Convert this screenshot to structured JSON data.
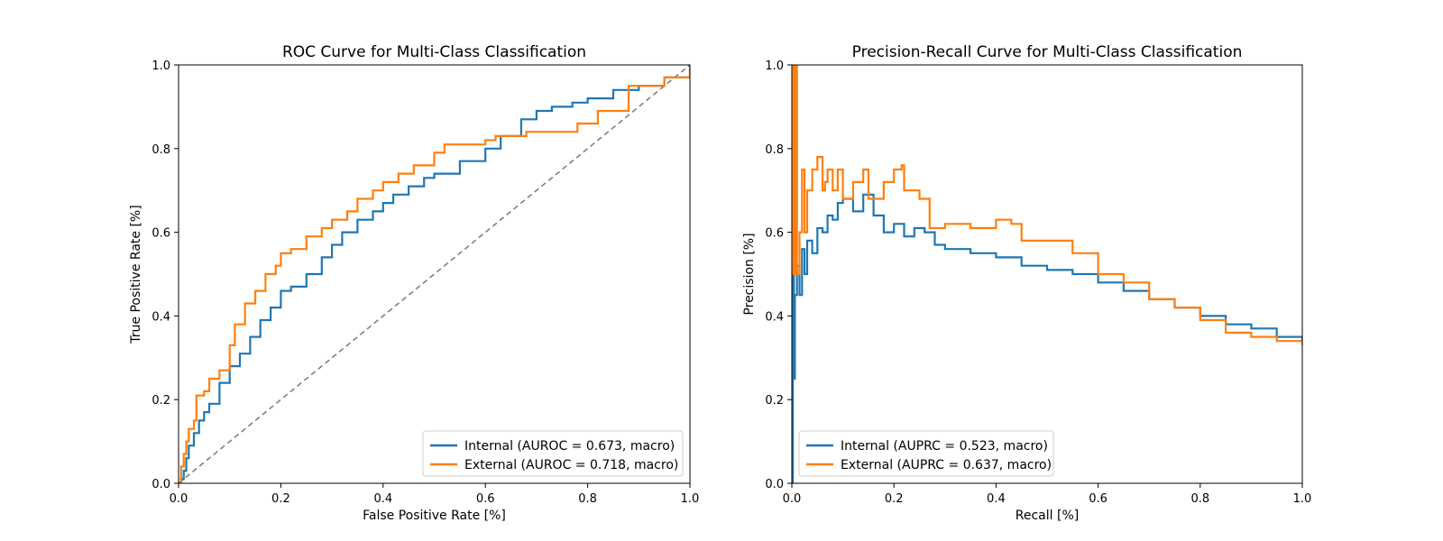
{
  "chart_data": [
    {
      "type": "line",
      "title": "ROC Curve for Multi-Class Classification",
      "xlabel": "False Positive Rate [%]",
      "ylabel": "True Positive Rate [%]",
      "xlim": [
        0,
        1
      ],
      "ylim": [
        0,
        1
      ],
      "xticks": [
        "0.0",
        "0.2",
        "0.4",
        "0.6",
        "0.8",
        "1.0"
      ],
      "yticks": [
        "0.0",
        "0.2",
        "0.4",
        "0.6",
        "0.8",
        "1.0"
      ],
      "grid": false,
      "legend_position": "lower right",
      "reference_line": {
        "x": [
          0,
          1
        ],
        "y": [
          0,
          1
        ],
        "style": "dashed",
        "color": "#808080"
      },
      "series": [
        {
          "name": "Internal (AUROC = 0.673, macro)",
          "color": "#1f77b4",
          "x": [
            0,
            0.005,
            0.01,
            0.015,
            0.02,
            0.03,
            0.04,
            0.05,
            0.06,
            0.08,
            0.1,
            0.12,
            0.14,
            0.16,
            0.18,
            0.2,
            0.22,
            0.25,
            0.28,
            0.3,
            0.32,
            0.35,
            0.38,
            0.4,
            0.42,
            0.45,
            0.48,
            0.5,
            0.55,
            0.6,
            0.63,
            0.67,
            0.7,
            0.73,
            0.77,
            0.8,
            0.85,
            0.9,
            0.95,
            1.0
          ],
          "y": [
            0,
            0.01,
            0.03,
            0.06,
            0.09,
            0.12,
            0.15,
            0.17,
            0.19,
            0.24,
            0.28,
            0.31,
            0.35,
            0.39,
            0.42,
            0.46,
            0.47,
            0.5,
            0.54,
            0.57,
            0.6,
            0.63,
            0.65,
            0.67,
            0.69,
            0.71,
            0.73,
            0.74,
            0.77,
            0.8,
            0.83,
            0.87,
            0.89,
            0.9,
            0.91,
            0.92,
            0.94,
            0.95,
            0.97,
            1.0
          ]
        },
        {
          "name": "External (AUROC = 0.718, macro)",
          "color": "#ff7f0e",
          "x": [
            0,
            0.005,
            0.01,
            0.015,
            0.02,
            0.03,
            0.035,
            0.05,
            0.06,
            0.08,
            0.1,
            0.11,
            0.13,
            0.15,
            0.17,
            0.19,
            0.2,
            0.22,
            0.25,
            0.28,
            0.3,
            0.33,
            0.35,
            0.38,
            0.4,
            0.43,
            0.46,
            0.5,
            0.52,
            0.55,
            0.6,
            0.62,
            0.65,
            0.68,
            0.72,
            0.78,
            0.82,
            0.88,
            0.95,
            1.0
          ],
          "y": [
            0,
            0.04,
            0.07,
            0.1,
            0.13,
            0.15,
            0.21,
            0.22,
            0.25,
            0.27,
            0.33,
            0.38,
            0.43,
            0.46,
            0.5,
            0.52,
            0.55,
            0.56,
            0.59,
            0.61,
            0.63,
            0.65,
            0.68,
            0.7,
            0.72,
            0.74,
            0.76,
            0.79,
            0.81,
            0.81,
            0.82,
            0.83,
            0.83,
            0.84,
            0.84,
            0.86,
            0.89,
            0.95,
            0.97,
            1.0
          ]
        }
      ]
    },
    {
      "type": "line",
      "title": "Precision-Recall Curve for Multi-Class Classification",
      "xlabel": "Recall [%]",
      "ylabel": "Precision [%]",
      "xlim": [
        0,
        1
      ],
      "ylim": [
        0,
        1
      ],
      "xticks": [
        "0.0",
        "0.2",
        "0.4",
        "0.6",
        "0.8",
        "1.0"
      ],
      "yticks": [
        "0.0",
        "0.2",
        "0.4",
        "0.6",
        "0.8",
        "1.0"
      ],
      "grid": false,
      "legend_position": "lower left",
      "series": [
        {
          "name": "Internal (AUPRC = 0.523, macro)",
          "color": "#1f77b4",
          "x": [
            0.0,
            0.002,
            0.004,
            0.006,
            0.01,
            0.015,
            0.02,
            0.025,
            0.03,
            0.04,
            0.05,
            0.06,
            0.07,
            0.08,
            0.09,
            0.1,
            0.12,
            0.14,
            0.16,
            0.18,
            0.2,
            0.22,
            0.24,
            0.26,
            0.28,
            0.3,
            0.35,
            0.4,
            0.45,
            0.5,
            0.55,
            0.6,
            0.65,
            0.7,
            0.75,
            0.8,
            0.85,
            0.9,
            0.95,
            1.0
          ],
          "y": [
            0.0,
            0.5,
            0.25,
            0.45,
            0.52,
            0.45,
            0.56,
            0.5,
            0.58,
            0.55,
            0.61,
            0.6,
            0.64,
            0.63,
            0.67,
            0.68,
            0.65,
            0.69,
            0.64,
            0.6,
            0.62,
            0.59,
            0.61,
            0.6,
            0.57,
            0.56,
            0.55,
            0.54,
            0.52,
            0.51,
            0.5,
            0.48,
            0.46,
            0.44,
            0.42,
            0.4,
            0.38,
            0.37,
            0.35,
            0.34
          ]
        },
        {
          "name": "External (AUPRC = 0.637, macro)",
          "color": "#ff7f0e",
          "x": [
            0.0,
            0.003,
            0.005,
            0.008,
            0.01,
            0.015,
            0.02,
            0.025,
            0.03,
            0.04,
            0.05,
            0.06,
            0.065,
            0.07,
            0.08,
            0.09,
            0.1,
            0.12,
            0.14,
            0.15,
            0.18,
            0.2,
            0.215,
            0.22,
            0.25,
            0.27,
            0.3,
            0.35,
            0.4,
            0.43,
            0.45,
            0.5,
            0.55,
            0.6,
            0.65,
            0.7,
            0.75,
            0.8,
            0.85,
            0.9,
            0.95,
            1.0
          ],
          "y": [
            0.5,
            1.0,
            0.5,
            1.0,
            0.5,
            0.6,
            0.75,
            0.6,
            0.7,
            0.75,
            0.78,
            0.7,
            0.72,
            0.75,
            0.7,
            0.75,
            0.68,
            0.72,
            0.75,
            0.68,
            0.72,
            0.75,
            0.76,
            0.7,
            0.68,
            0.61,
            0.62,
            0.61,
            0.63,
            0.62,
            0.58,
            0.58,
            0.55,
            0.5,
            0.48,
            0.44,
            0.42,
            0.39,
            0.36,
            0.35,
            0.34,
            0.33
          ]
        }
      ]
    }
  ]
}
